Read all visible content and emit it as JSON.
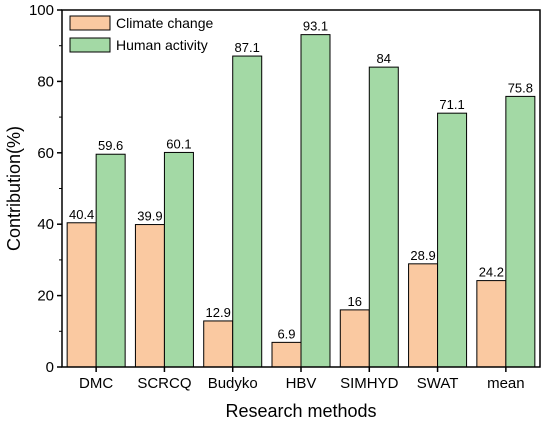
{
  "chart_data": {
    "type": "bar",
    "title": "",
    "xlabel": "Research methods",
    "ylabel": "Contribution(%)",
    "ylim": [
      0,
      100
    ],
    "yticks": [
      0,
      20,
      40,
      60,
      80,
      100
    ],
    "categories": [
      "DMC",
      "SCRCQ",
      "Budyko",
      "HBV",
      "SIMHYD",
      "SWAT",
      "mean"
    ],
    "series": [
      {
        "name": "Climate change",
        "values": [
          40.4,
          39.9,
          12.9,
          6.9,
          16,
          28.9,
          24.2
        ],
        "labels": [
          "40.4",
          "39.9",
          "12.9",
          "6.9",
          "16",
          "28.9",
          "24.2"
        ],
        "color": "#FAC9A1"
      },
      {
        "name": "Human activity",
        "values": [
          59.6,
          60.1,
          87.1,
          93.1,
          84,
          71.1,
          75.8
        ],
        "labels": [
          "59.6",
          "60.1",
          "87.1",
          "93.1",
          "84",
          "71.1",
          "75.8"
        ],
        "color": "#A3D9A5"
      }
    ],
    "grid": false,
    "legend_position": "top-left"
  }
}
